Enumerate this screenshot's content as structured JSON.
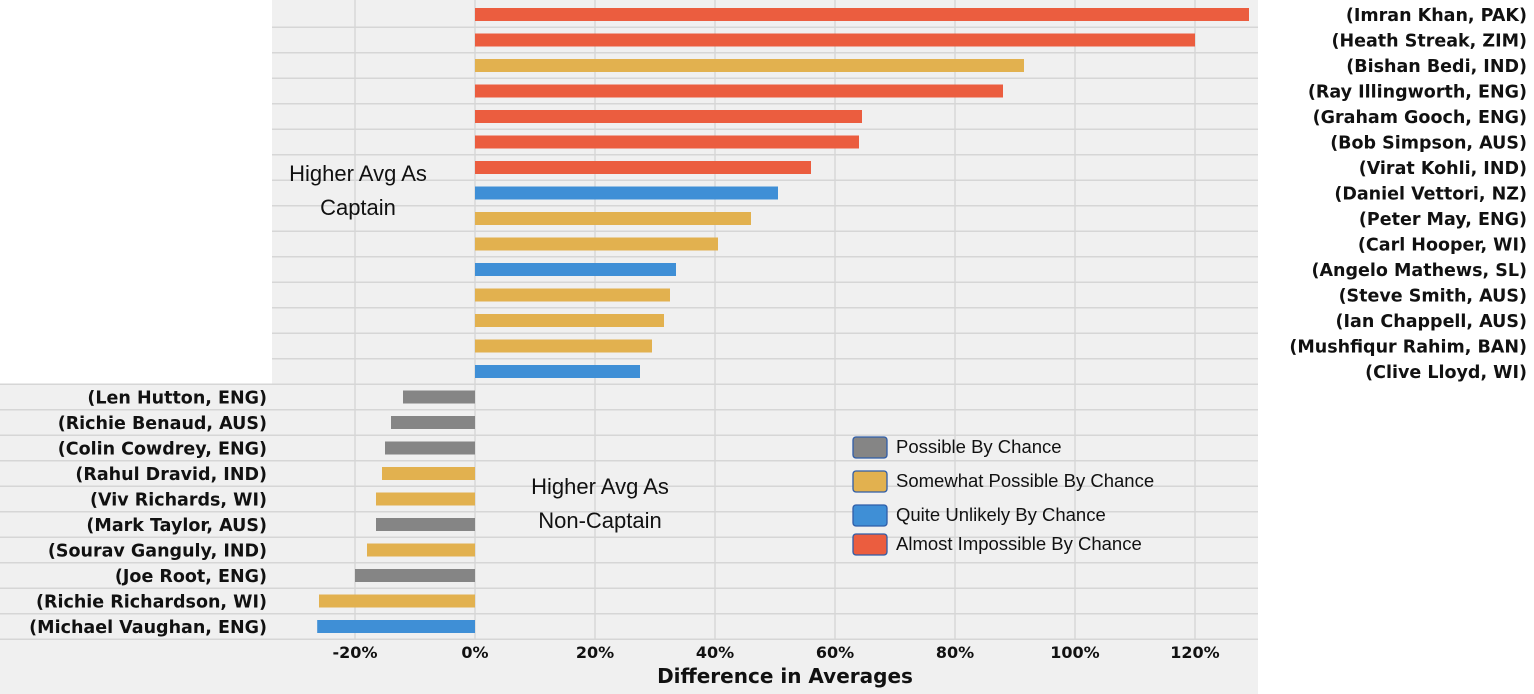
{
  "chart_data": {
    "type": "bar",
    "orientation": "horizontal",
    "title": "",
    "xlabel": "Difference in Averages",
    "ylabel": "",
    "xlim": [
      -27,
      130
    ],
    "xticks": [
      -20,
      0,
      20,
      40,
      60,
      80,
      100,
      120
    ],
    "xtick_labels": [
      "-20%",
      "0%",
      "20%",
      "40%",
      "60%",
      "80%",
      "100%",
      "120%"
    ],
    "grid": true,
    "legend_position": "lower-right",
    "categories": [
      {
        "key": "possible",
        "label": "Possible By Chance",
        "color": "#858585"
      },
      {
        "key": "somewhat",
        "label": "Somewhat Possible By Chance",
        "color": "#e2b14f"
      },
      {
        "key": "unlikely",
        "label": "Quite Unlikely By Chance",
        "color": "#3f8fd6"
      },
      {
        "key": "impossible",
        "label": "Almost Impossible By Chance",
        "color": "#eb5d3f"
      }
    ],
    "bars": [
      {
        "label": "(Imran Khan, PAK)",
        "value": 129,
        "category": "impossible"
      },
      {
        "label": "(Heath Streak, ZIM)",
        "value": 120,
        "category": "impossible"
      },
      {
        "label": "(Bishan Bedi, IND)",
        "value": 91.5,
        "category": "somewhat"
      },
      {
        "label": "(Ray Illingworth, ENG)",
        "value": 88,
        "category": "impossible"
      },
      {
        "label": "(Graham Gooch, ENG)",
        "value": 64.5,
        "category": "impossible"
      },
      {
        "label": "(Bob Simpson, AUS)",
        "value": 64,
        "category": "impossible"
      },
      {
        "label": "(Virat Kohli, IND)",
        "value": 56,
        "category": "impossible"
      },
      {
        "label": "(Daniel Vettori, NZ)",
        "value": 50.5,
        "category": "unlikely"
      },
      {
        "label": "(Peter May, ENG)",
        "value": 46,
        "category": "somewhat"
      },
      {
        "label": "(Carl Hooper, WI)",
        "value": 40.5,
        "category": "somewhat"
      },
      {
        "label": "(Angelo Mathews, SL)",
        "value": 33.5,
        "category": "unlikely"
      },
      {
        "label": "(Steve Smith, AUS)",
        "value": 32.5,
        "category": "somewhat"
      },
      {
        "label": "(Ian Chappell, AUS)",
        "value": 31.5,
        "category": "somewhat"
      },
      {
        "label": "(Mushfiqur Rahim, BAN)",
        "value": 29.5,
        "category": "somewhat"
      },
      {
        "label": "(Clive Lloyd, WI)",
        "value": 27.5,
        "category": "unlikely"
      },
      {
        "label": "(Len Hutton, ENG)",
        "value": -12,
        "category": "possible"
      },
      {
        "label": "(Richie Benaud, AUS)",
        "value": -14,
        "category": "possible"
      },
      {
        "label": "(Colin Cowdrey, ENG)",
        "value": -15,
        "category": "possible"
      },
      {
        "label": "(Rahul Dravid, IND)",
        "value": -15.5,
        "category": "somewhat"
      },
      {
        "label": "(Viv Richards, WI)",
        "value": -16.5,
        "category": "somewhat"
      },
      {
        "label": "(Mark Taylor, AUS)",
        "value": -16.5,
        "category": "possible"
      },
      {
        "label": "(Sourav Ganguly, IND)",
        "value": -18,
        "category": "somewhat"
      },
      {
        "label": "(Joe Root, ENG)",
        "value": -20,
        "category": "possible"
      },
      {
        "label": "(Richie Richardson, WI)",
        "value": -26,
        "category": "somewhat"
      },
      {
        "label": "(Michael Vaughan, ENG)",
        "value": -26.3,
        "category": "unlikely"
      }
    ],
    "annotations": [
      {
        "key": "higher-captain",
        "lines": [
          "Higher Avg As",
          "Captain"
        ]
      },
      {
        "key": "higher-noncaptain",
        "lines": [
          "Higher Avg As",
          "Non-Captain"
        ]
      }
    ]
  }
}
